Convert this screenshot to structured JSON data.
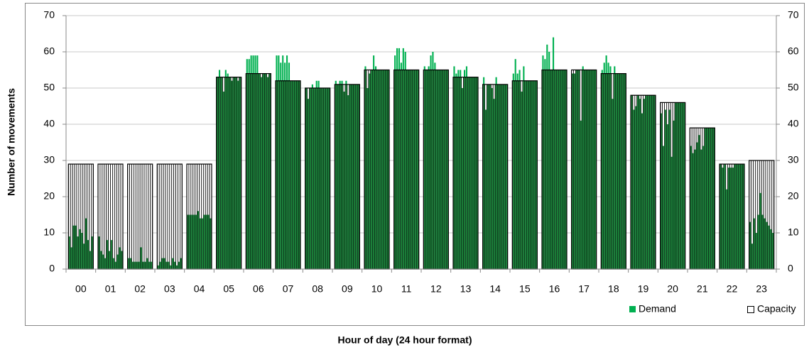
{
  "chart_data": {
    "type": "bar",
    "x_label": "Hour of day (24 hour format)",
    "y_label": "Number of movements",
    "categories": [
      "00",
      "01",
      "02",
      "03",
      "04",
      "05",
      "06",
      "07",
      "08",
      "09",
      "10",
      "11",
      "12",
      "13",
      "14",
      "15",
      "16",
      "17",
      "18",
      "19",
      "20",
      "21",
      "22",
      "23"
    ],
    "series": [
      {
        "name": "Demand",
        "color": "#00b050",
        "values": [
          [
            9,
            6,
            12,
            12,
            9,
            11,
            10,
            7,
            14,
            8,
            5,
            9
          ],
          [
            9,
            5,
            4,
            3,
            8,
            5,
            8,
            3,
            2,
            4,
            6,
            5
          ],
          [
            3,
            3,
            2,
            2,
            2,
            2,
            6,
            2,
            2,
            3,
            2,
            2
          ],
          [
            1,
            2,
            3,
            3,
            2,
            2,
            1,
            3,
            2,
            1,
            2,
            3
          ],
          [
            15,
            15,
            15,
            15,
            15,
            16,
            14,
            14,
            15,
            15,
            15,
            14
          ],
          [
            53,
            55,
            53,
            49,
            55,
            54,
            53,
            52,
            53,
            53,
            52,
            53
          ],
          [
            58,
            58,
            59,
            59,
            59,
            59,
            54,
            53,
            54,
            54,
            53,
            54
          ],
          [
            59,
            59,
            57,
            59,
            57,
            59,
            57,
            52,
            52,
            52,
            52,
            52
          ],
          [
            50,
            47,
            50,
            51,
            50,
            52,
            52,
            50,
            50,
            50,
            50,
            50
          ],
          [
            52,
            51,
            52,
            52,
            49,
            52,
            48,
            51,
            51,
            51,
            51,
            51
          ],
          [
            56,
            50,
            54,
            55,
            59,
            56,
            55,
            55,
            55,
            55,
            55,
            55
          ],
          [
            59,
            61,
            61,
            57,
            61,
            60,
            55,
            55,
            55,
            55,
            55,
            55
          ],
          [
            56,
            55,
            56,
            59,
            60,
            57,
            55,
            55,
            55,
            55,
            55,
            55
          ],
          [
            56,
            54,
            55,
            55,
            50,
            55,
            56,
            53,
            53,
            53,
            53,
            53
          ],
          [
            53,
            44,
            51,
            51,
            50,
            47,
            53,
            51,
            51,
            51,
            51,
            51
          ],
          [
            54,
            58,
            54,
            55,
            49,
            56,
            52,
            52,
            52,
            52,
            52,
            52
          ],
          [
            59,
            58,
            62,
            60,
            55,
            64,
            55,
            55,
            55,
            55,
            55,
            55
          ],
          [
            54,
            54,
            55,
            55,
            41,
            56,
            55,
            55,
            55,
            55,
            55,
            55
          ],
          [
            55,
            57,
            59,
            57,
            56,
            47,
            56,
            54,
            54,
            54,
            54,
            54
          ],
          [
            48,
            44,
            45,
            48,
            47,
            43,
            47,
            48,
            48,
            48,
            48,
            48
          ],
          [
            43,
            34,
            44,
            40,
            44,
            31,
            41,
            46,
            46,
            46,
            46,
            46
          ],
          [
            34,
            32,
            33,
            35,
            37,
            33,
            34,
            39,
            39,
            39,
            39,
            39
          ],
          [
            29,
            28,
            29,
            22,
            28,
            28,
            28,
            29,
            29,
            29,
            29,
            29
          ],
          [
            13,
            7,
            14,
            10,
            15,
            21,
            15,
            14,
            13,
            12,
            11,
            10
          ]
        ]
      },
      {
        "name": "Capacity",
        "color": "#ffffff",
        "values": [
          29,
          29,
          29,
          29,
          29,
          53,
          54,
          52,
          50,
          51,
          55,
          55,
          55,
          53,
          51,
          52,
          55,
          55,
          54,
          48,
          46,
          39,
          29,
          30
        ]
      }
    ],
    "ylim": [
      0,
      70
    ],
    "yticks": [
      0,
      10,
      20,
      30,
      40,
      50,
      60,
      70
    ],
    "y2lim": [
      0,
      70
    ],
    "y2ticks": [
      0,
      10,
      20,
      30,
      40,
      50,
      60,
      70
    ],
    "grid": true,
    "legend": "bottom-right"
  }
}
